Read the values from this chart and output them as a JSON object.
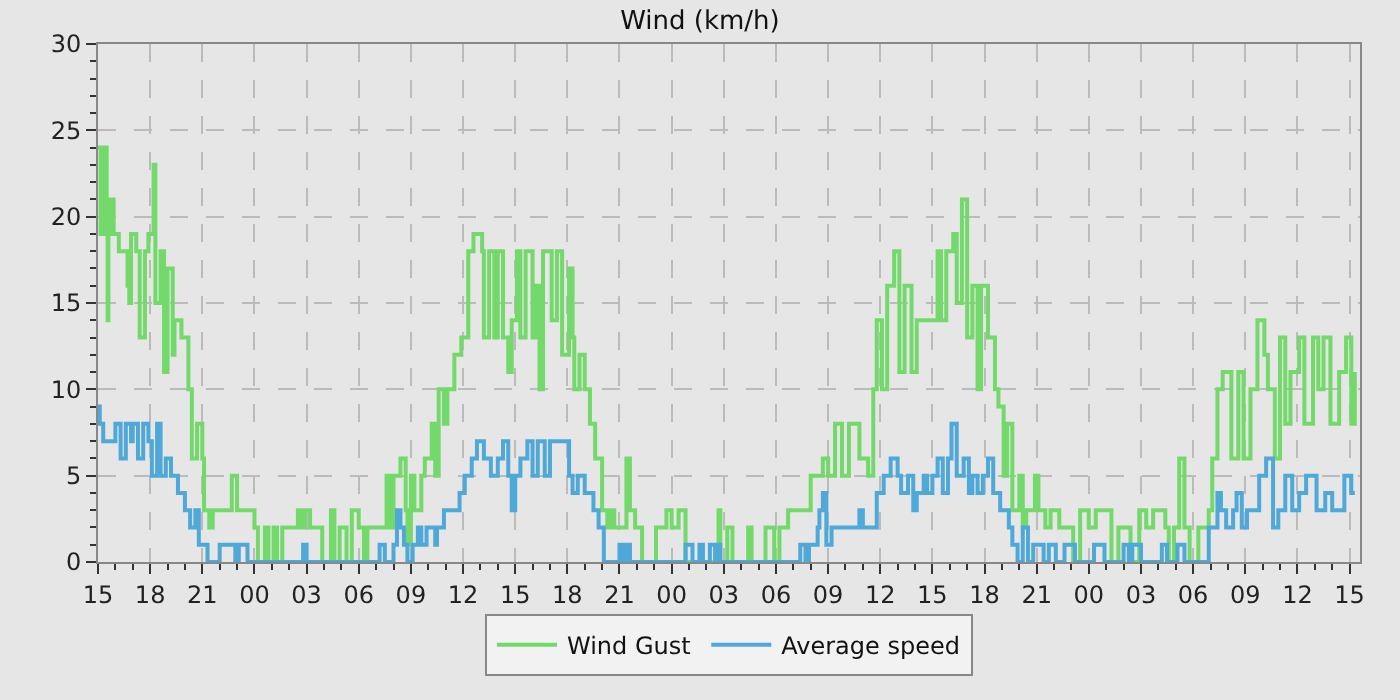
{
  "chart_data": {
    "type": "step",
    "title": "Wind (km/h)",
    "xlim": [
      15,
      87.6
    ],
    "ylim": [
      0,
      30
    ],
    "xticks": [
      {
        "value": 15,
        "label": "15"
      },
      {
        "value": 18,
        "label": "18"
      },
      {
        "value": 21,
        "label": "21"
      },
      {
        "value": 24,
        "label": "00"
      },
      {
        "value": 27,
        "label": "03"
      },
      {
        "value": 30,
        "label": "06"
      },
      {
        "value": 33,
        "label": "09"
      },
      {
        "value": 36,
        "label": "12"
      },
      {
        "value": 39,
        "label": "15"
      },
      {
        "value": 42,
        "label": "18"
      },
      {
        "value": 45,
        "label": "21"
      },
      {
        "value": 48,
        "label": "00"
      },
      {
        "value": 51,
        "label": "03"
      },
      {
        "value": 54,
        "label": "06"
      },
      {
        "value": 57,
        "label": "09"
      },
      {
        "value": 60,
        "label": "12"
      },
      {
        "value": 63,
        "label": "15"
      },
      {
        "value": 66,
        "label": "18"
      },
      {
        "value": 69,
        "label": "21"
      },
      {
        "value": 72,
        "label": "00"
      },
      {
        "value": 75,
        "label": "03"
      },
      {
        "value": 78,
        "label": "06"
      },
      {
        "value": 81,
        "label": "09"
      },
      {
        "value": 84,
        "label": "12"
      },
      {
        "value": 87,
        "label": "15"
      }
    ],
    "yticks": [
      0,
      5,
      10,
      15,
      20,
      25,
      30
    ],
    "grid": true,
    "legend": "bottom",
    "series": [
      {
        "name": "Wind Gust",
        "color": "#73d96b",
        "x": [
          15,
          15.15,
          15.3,
          15.5,
          15.55,
          15.6,
          15.7,
          15.9,
          16.2,
          16.7,
          16.8,
          16.9,
          17.2,
          17.4,
          17.7,
          17.9,
          18.2,
          18.3,
          18.6,
          18.8,
          19.0,
          19.3,
          19.4,
          19.8,
          20.1,
          20.2,
          20.4,
          20.7,
          21.0,
          21.1,
          21.4,
          21.6,
          22.7,
          23.0,
          24.0,
          24.2,
          24.6,
          24.8,
          25.1,
          25.3,
          25.6,
          26.5,
          26.7,
          26.9,
          27.2,
          27.9,
          28.4,
          28.6,
          28.9,
          29.3,
          29.6,
          30.0,
          30.3,
          30.5,
          31.6,
          31.8,
          32.0,
          32.4,
          32.7,
          32.8,
          33.0,
          33.2,
          33.6,
          33.8,
          34.2,
          34.4,
          34.6,
          34.9,
          35.1,
          35.5,
          35.9,
          36.3,
          36.6,
          37.1,
          37.2,
          37.5,
          37.8,
          38.0,
          38.3,
          38.6,
          38.8,
          39.1,
          39.3,
          39.6,
          40.0,
          40.2,
          40.4,
          40.6,
          41.1,
          41.4,
          41.7,
          42.1,
          42.3,
          42.4,
          42.7,
          43.0,
          43.3,
          43.6,
          44.0,
          44.3,
          44.5,
          44.7,
          45.4,
          45.6,
          45.9,
          46.3,
          47.1,
          47.7,
          48.0,
          48.4,
          48.8,
          50.7,
          50.8,
          51.2,
          51.5,
          52.4,
          52.6,
          53.4,
          53.9,
          54.2,
          54.7,
          56.0,
          56.7,
          57.0,
          57.4,
          57.8,
          58.2,
          58.8,
          59.3,
          59.6,
          59.8,
          60.1,
          60.4,
          60.8,
          61.1,
          61.4,
          61.8,
          62.1,
          63.3,
          63.5,
          63.8,
          64.2,
          64.4,
          64.7,
          65.0,
          65.3,
          65.6,
          65.8,
          66.2,
          66.6,
          66.8,
          67.1,
          67.3,
          67.6,
          68.0,
          68.2,
          68.4,
          68.9,
          69.1,
          69.5,
          69.8,
          70.3,
          71.1,
          71.5,
          72.0,
          72.4,
          73.3,
          73.7,
          74.4,
          74.9,
          75.3,
          75.7,
          76.4,
          76.6,
          76.9,
          77.2,
          77.5,
          77.8,
          78.3,
          78.9,
          79.1,
          79.4,
          79.7,
          80.2,
          80.6,
          80.9,
          81.3,
          81.7,
          82.1,
          82.3,
          82.7,
          83.0,
          83.3,
          83.6,
          84.1,
          84.4,
          84.9,
          85.2,
          85.5,
          85.9,
          86.4,
          86.8,
          87.1,
          87.3
        ],
        "values": [
          24,
          19,
          24,
          19,
          14,
          19,
          21,
          19,
          18,
          16,
          15,
          19,
          18,
          13,
          18,
          19,
          23,
          15,
          18,
          11,
          17,
          12,
          14,
          13,
          13,
          10,
          6,
          8,
          6,
          3,
          2,
          3,
          5,
          3,
          2,
          0,
          2,
          0,
          2,
          0,
          2,
          3,
          2,
          3,
          2,
          0,
          3,
          0,
          2,
          0,
          3,
          2,
          0,
          2,
          5,
          2,
          5,
          6,
          3,
          1,
          5,
          3,
          5,
          6,
          8,
          5,
          10,
          8,
          10,
          12,
          13,
          18,
          19,
          18,
          13,
          18,
          13,
          18,
          13,
          11,
          14,
          18,
          13,
          18,
          13,
          16,
          10,
          18,
          14,
          18,
          12,
          17,
          13,
          10,
          12,
          10,
          8,
          6,
          3,
          2,
          3,
          2,
          6,
          3,
          2,
          0,
          2,
          3,
          2,
          3,
          0,
          3,
          0,
          2,
          0,
          2,
          0,
          2,
          0,
          2,
          3,
          5,
          6,
          5,
          8,
          5,
          8,
          6,
          5,
          10,
          14,
          10,
          16,
          18,
          11,
          16,
          11,
          14,
          18,
          14,
          18,
          19,
          15,
          21,
          13,
          16,
          10,
          16,
          13,
          10,
          9,
          5,
          8,
          3,
          5,
          2,
          3,
          5,
          3,
          2,
          3,
          2,
          0,
          3,
          2,
          3,
          0,
          2,
          0,
          3,
          2,
          3,
          2,
          0,
          2,
          6,
          2,
          0,
          2,
          3,
          6,
          10,
          11,
          6,
          11,
          6,
          10,
          14,
          12,
          10,
          6,
          13,
          8,
          11,
          13,
          8,
          13,
          10,
          13,
          8,
          11,
          13,
          8,
          11
        ]
      },
      {
        "name": "Average speed",
        "color": "#4ea8d8",
        "x": [
          15,
          15.1,
          15.3,
          16.0,
          16.3,
          16.6,
          16.9,
          17.0,
          17.3,
          17.6,
          17.9,
          18.1,
          18.4,
          18.6,
          18.9,
          19.2,
          19.6,
          20.0,
          20.3,
          20.6,
          20.8,
          21.3,
          22.0,
          22.9,
          23.1,
          23.6,
          26.8,
          27.0,
          31.2,
          31.5,
          32.0,
          32.2,
          32.4,
          32.6,
          32.8,
          33.1,
          33.4,
          33.6,
          33.9,
          34.4,
          34.5,
          34.9,
          35.8,
          36.1,
          36.5,
          36.8,
          37.2,
          37.6,
          38.0,
          38.3,
          38.6,
          38.8,
          39.0,
          39.3,
          39.7,
          40.0,
          40.3,
          40.7,
          41.0,
          42.1,
          42.3,
          42.6,
          43.0,
          43.5,
          43.8,
          44.1,
          45.0,
          45.2,
          45.4,
          45.6,
          48.8,
          49.2,
          49.6,
          49.8,
          50.2,
          50.5,
          50.7,
          50.8,
          55.4,
          55.7,
          55.9,
          56.4,
          56.5,
          56.7,
          56.9,
          57.2,
          58.8,
          59.0,
          59.8,
          60.2,
          60.6,
          61.0,
          61.2,
          61.6,
          61.9,
          62.1,
          62.5,
          62.7,
          63.0,
          63.3,
          63.6,
          63.9,
          64.1,
          64.4,
          64.8,
          65.1,
          65.3,
          65.6,
          65.9,
          66.2,
          66.5,
          66.9,
          67.4,
          67.6,
          67.9,
          68.2,
          68.5,
          68.8,
          69.4,
          69.7,
          70.1,
          70.6,
          71.2,
          72.3,
          72.9,
          74.0,
          74.3,
          74.5,
          75.0,
          76.2,
          76.5,
          77.1,
          77.5,
          78.9,
          79.4,
          79.6,
          79.9,
          80.3,
          80.5,
          80.8,
          81.1,
          81.8,
          82.2,
          82.6,
          82.9,
          83.3,
          83.7,
          84.1,
          84.5,
          85.1,
          85.6,
          86.0,
          86.7,
          87.1,
          87.3
        ],
        "values": [
          9,
          8,
          7,
          8,
          6,
          8,
          7,
          8,
          6,
          8,
          7,
          5,
          8,
          5,
          6,
          5,
          4,
          3,
          2,
          3,
          1,
          0,
          1,
          0,
          1,
          0,
          1,
          0,
          1,
          0,
          1,
          3,
          2,
          1,
          0,
          1,
          2,
          1,
          2,
          1,
          2,
          3,
          4,
          5,
          6,
          7,
          6,
          5,
          6,
          7,
          5,
          3,
          5,
          6,
          7,
          5,
          7,
          5,
          7,
          5,
          4,
          5,
          4,
          3,
          2,
          0,
          1,
          0,
          1,
          0,
          1,
          0,
          1,
          0,
          1,
          0,
          1,
          0,
          1,
          0,
          1,
          2,
          3,
          4,
          1,
          2,
          3,
          2,
          4,
          5,
          6,
          5,
          4,
          5,
          3,
          4,
          5,
          4,
          5,
          6,
          4,
          6,
          8,
          5,
          6,
          4,
          5,
          4,
          5,
          6,
          4,
          3,
          2,
          1,
          0,
          2,
          0,
          1,
          0,
          1,
          0,
          1,
          0,
          1,
          0,
          1,
          0,
          1,
          0,
          1,
          0,
          1,
          0,
          2,
          4,
          3,
          2,
          3,
          4,
          2,
          3,
          5,
          6,
          2,
          3,
          5,
          3,
          4,
          5,
          3,
          4,
          3,
          5,
          4,
          4
        ]
      }
    ]
  }
}
